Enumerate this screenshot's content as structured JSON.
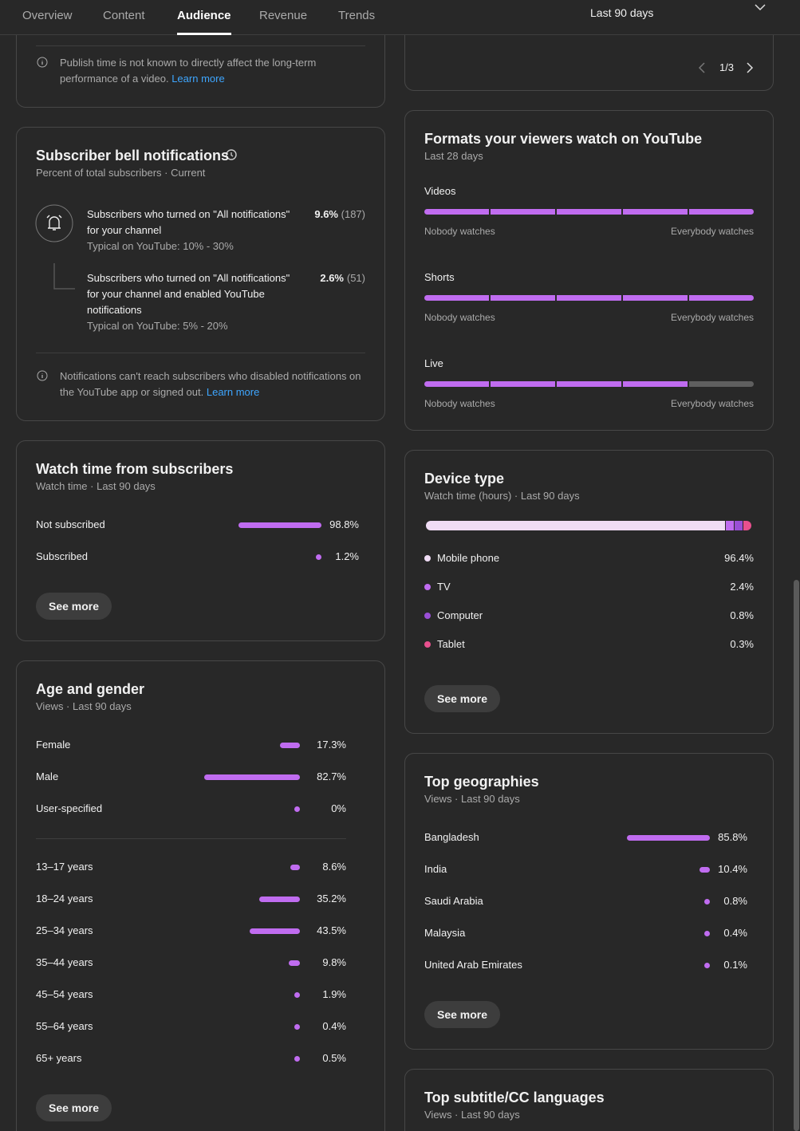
{
  "nav": {
    "tabs": [
      {
        "label": "Overview"
      },
      {
        "label": "Content"
      },
      {
        "label": "Audience",
        "selected": true
      },
      {
        "label": "Revenue"
      },
      {
        "label": "Trends"
      }
    ],
    "date_range": "Last 90 days"
  },
  "publish_card": {
    "note": "Publish time is not known to directly affect the long-term performance of a video.",
    "link": "Learn more"
  },
  "bell": {
    "title": "Subscriber bell notifications",
    "subtitle": "Percent of total subscribers · Current",
    "rows": [
      {
        "text": "Subscribers who turned on \"All notifications\" for your channel",
        "value": 9.6,
        "value_label": "9.6%",
        "count": "(187)",
        "typical": "Typical on YouTube: 10% - 30%"
      },
      {
        "text": "Subscribers who turned on \"All notifications\" for your channel and enabled YouTube notifications",
        "value": 2.6,
        "value_label": "2.6%",
        "count": "(51)",
        "typical": "Typical on YouTube: 5% - 20%"
      }
    ],
    "note": "Notifications can't reach subscribers who disabled notifications on the YouTube app or signed out.",
    "link": "Learn more"
  },
  "watch_subs": {
    "title": "Watch time from subscribers",
    "subtitle": "Watch time · Last 90 days",
    "rows": [
      {
        "label": "Not subscribed",
        "value": 98.8,
        "value_label": "98.8%"
      },
      {
        "label": "Subscribed",
        "value": 1.2,
        "value_label": "1.2%"
      }
    ],
    "button": "See more"
  },
  "age_gender": {
    "title": "Age and gender",
    "subtitle": "Views · Last 90 days",
    "gender": [
      {
        "label": "Female",
        "value": 17.3,
        "value_label": "17.3%"
      },
      {
        "label": "Male",
        "value": 82.7,
        "value_label": "82.7%"
      },
      {
        "label": "User-specified",
        "value": 0,
        "value_label": "0%"
      }
    ],
    "age": [
      {
        "label": "13–17 years",
        "value": 8.6,
        "value_label": "8.6%"
      },
      {
        "label": "18–24 years",
        "value": 35.2,
        "value_label": "35.2%"
      },
      {
        "label": "25–34 years",
        "value": 43.5,
        "value_label": "43.5%"
      },
      {
        "label": "35–44 years",
        "value": 9.8,
        "value_label": "9.8%"
      },
      {
        "label": "45–54 years",
        "value": 1.9,
        "value_label": "1.9%"
      },
      {
        "label": "55–64 years",
        "value": 0.4,
        "value_label": "0.4%"
      },
      {
        "label": "65+ years",
        "value": 0.5,
        "value_label": "0.5%"
      }
    ],
    "button": "See more"
  },
  "pager": "1/3",
  "formats": {
    "title": "Formats your viewers watch on YouTube",
    "subtitle": "Last 28 days",
    "rows": [
      {
        "label": "Videos",
        "level": 5,
        "min_label": "Nobody watches",
        "max_label": "Everybody watches"
      },
      {
        "label": "Shorts",
        "level": 5,
        "min_label": "Nobody watches",
        "max_label": "Everybody watches"
      },
      {
        "label": "Live",
        "level": 4,
        "min_label": "Nobody watches",
        "max_label": "Everybody watches"
      }
    ]
  },
  "device": {
    "title": "Device type",
    "subtitle": "Watch time (hours) · Last 90 days",
    "rows": [
      {
        "label": "Mobile phone",
        "value": 96.4,
        "value_label": "96.4%",
        "color": "#f0dcf5"
      },
      {
        "label": "TV",
        "value": 2.4,
        "value_label": "2.4%",
        "color": "#c06cf0"
      },
      {
        "label": "Computer",
        "value": 0.8,
        "value_label": "0.8%",
        "color": "#9a4fd6"
      },
      {
        "label": "Tablet",
        "value": 0.3,
        "value_label": "0.3%",
        "color": "#e8508e"
      }
    ],
    "button": "See more"
  },
  "geo": {
    "title": "Top geographies",
    "subtitle": "Views · Last 90 days",
    "rows": [
      {
        "label": "Bangladesh",
        "value": 85.8,
        "value_label": "85.8%"
      },
      {
        "label": "India",
        "value": 10.4,
        "value_label": "10.4%"
      },
      {
        "label": "Saudi Arabia",
        "value": 0.8,
        "value_label": "0.8%"
      },
      {
        "label": "Malaysia",
        "value": 0.4,
        "value_label": "0.4%"
      },
      {
        "label": "United Arab Emirates",
        "value": 0.1,
        "value_label": "0.1%"
      }
    ],
    "button": "See more"
  },
  "subtitle_card": {
    "title": "Top subtitle/CC languages",
    "subtitle": "Views · Last 90 days"
  }
}
